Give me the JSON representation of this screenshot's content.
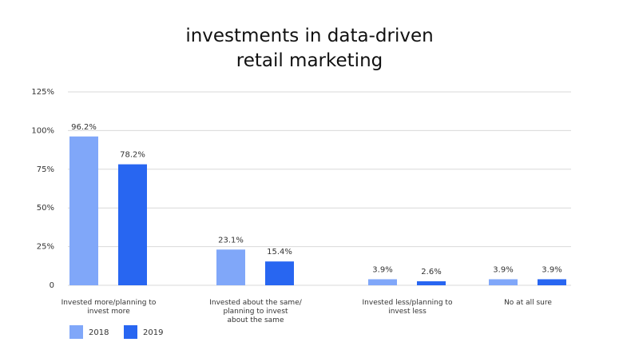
{
  "chart_data": {
    "type": "bar",
    "title": "investments in data-driven\nretail marketing",
    "categories": [
      "Invested more/planning to\ninvest more",
      "Invested about the same/\nplanning to invest\nabout the same",
      "Invested less/planning to\ninvest less",
      "No at all sure"
    ],
    "series": [
      {
        "name": "2018",
        "color": "#80a7f9",
        "values": [
          96.2,
          23.1,
          3.9,
          3.9
        ],
        "value_labels": [
          "96.2%",
          "23.1%",
          "3.9%",
          "3.9%"
        ]
      },
      {
        "name": "2019",
        "color": "#2866f1",
        "values": [
          78.2,
          15.4,
          2.6,
          3.9
        ],
        "value_labels": [
          "78.2%",
          "15.4%",
          "2.6%",
          "3.9%"
        ]
      }
    ],
    "ylim": [
      0,
      125
    ],
    "yticks": [
      0,
      {
        "value": 25,
        "label": "25%"
      },
      {
        "value": 50,
        "label": "50%"
      },
      {
        "value": 75,
        "label": "75%"
      },
      {
        "value": 100,
        "label": "100%"
      },
      {
        "value": 125,
        "label": "125%"
      }
    ],
    "grid": true
  }
}
